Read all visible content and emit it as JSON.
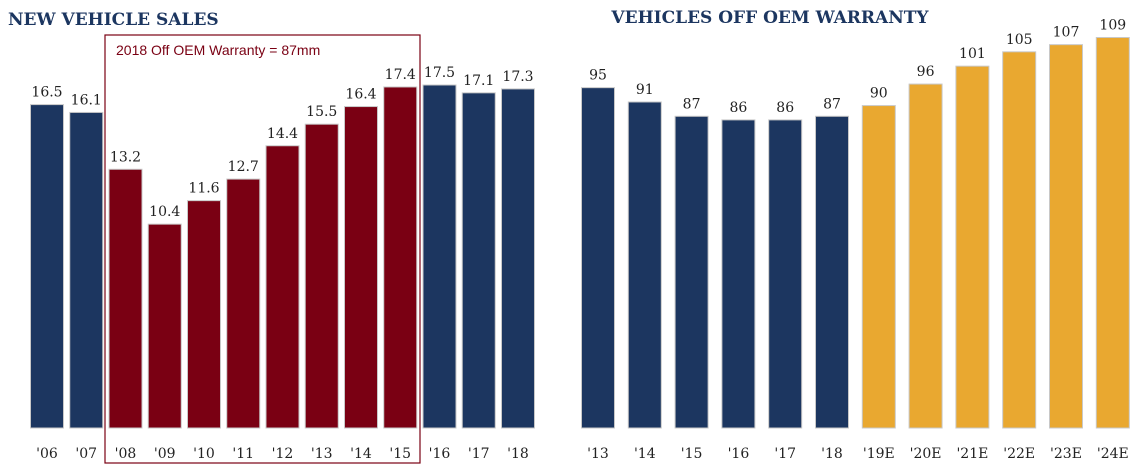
{
  "chart_data": [
    {
      "type": "bar",
      "title": "NEW VEHICLE SALES",
      "annotation": "2018 Off OEM Warranty = 87mm",
      "categories": [
        "'06",
        "'07",
        "'08",
        "'09",
        "'10",
        "'11",
        "'12",
        "'13",
        "'14",
        "'15",
        "'16",
        "'17",
        "'18"
      ],
      "values": [
        16.5,
        16.1,
        13.2,
        10.4,
        11.6,
        12.7,
        14.4,
        15.5,
        16.4,
        17.4,
        17.5,
        17.1,
        17.3
      ],
      "colors": [
        "#1c3660",
        "#1c3660",
        "#7a0013",
        "#7a0013",
        "#7a0013",
        "#7a0013",
        "#7a0013",
        "#7a0013",
        "#7a0013",
        "#7a0013",
        "#1c3660",
        "#1c3660",
        "#1c3660"
      ],
      "ylim": [
        0,
        20
      ]
    },
    {
      "type": "bar",
      "title": "VEHICLES OFF OEM WARRANTY",
      "categories": [
        "'13",
        "'14",
        "'15",
        "'16",
        "'17",
        "'18",
        "'19E",
        "'20E",
        "'21E",
        "'22E",
        "'23E",
        "'24E"
      ],
      "values": [
        95,
        91,
        87,
        86,
        86,
        87,
        90,
        96,
        101,
        105,
        107,
        109
      ],
      "colors": [
        "#1c3660",
        "#1c3660",
        "#1c3660",
        "#1c3660",
        "#1c3660",
        "#1c3660",
        "#e9a830",
        "#e9a830",
        "#e9a830",
        "#e9a830",
        "#e9a830",
        "#e9a830"
      ],
      "ylim": [
        0,
        115
      ]
    }
  ]
}
